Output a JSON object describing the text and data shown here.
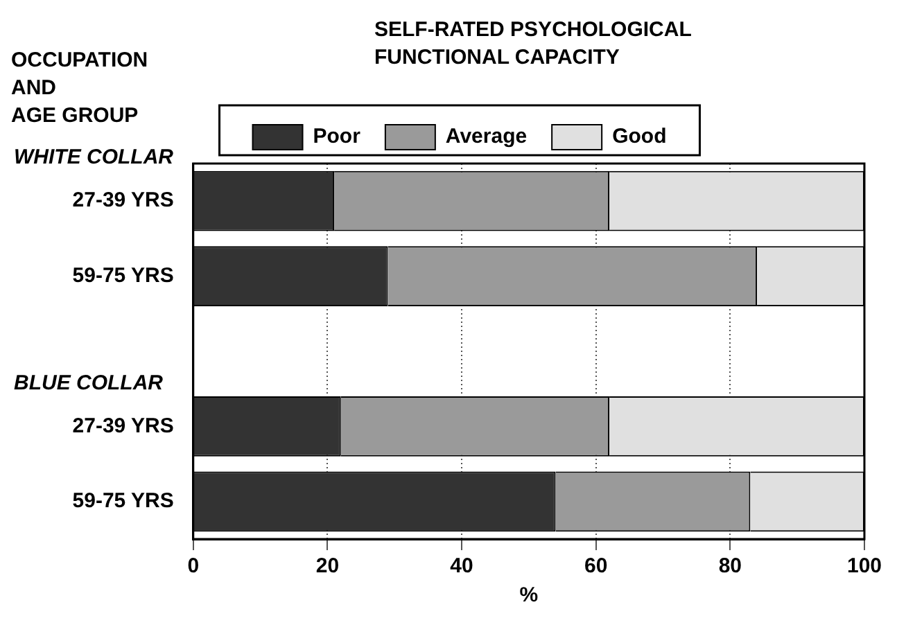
{
  "chart_data": {
    "type": "bar",
    "orientation": "horizontal",
    "stacked": true,
    "title": "SELF-RATED PSYCHOLOGICAL FUNCTIONAL CAPACITY",
    "ylabel": "OCCUPATION\nAND\nAGE GROUP",
    "xlabel": "%",
    "categories": [
      "27-39 YRS",
      "59-75 YRS",
      null,
      "27-39 YRS",
      "59-75 YRS"
    ],
    "series": [
      {
        "name": "Poor",
        "color": "#333333",
        "values": [
          21,
          29,
          null,
          22,
          54
        ]
      },
      {
        "name": "Average",
        "color": "#9a9a9a",
        "values": [
          41,
          55,
          null,
          40,
          29
        ]
      },
      {
        "name": "Good",
        "color": "#e0e0e0",
        "values": [
          38,
          16,
          null,
          38,
          17
        ]
      }
    ],
    "annotations": [
      "WHITE COLLAR",
      "BLUE COLLAR"
    ],
    "xlim": [
      0,
      100
    ],
    "xticks": [
      0,
      20,
      40,
      60,
      80,
      100
    ],
    "grid": "x",
    "legend": "top"
  }
}
